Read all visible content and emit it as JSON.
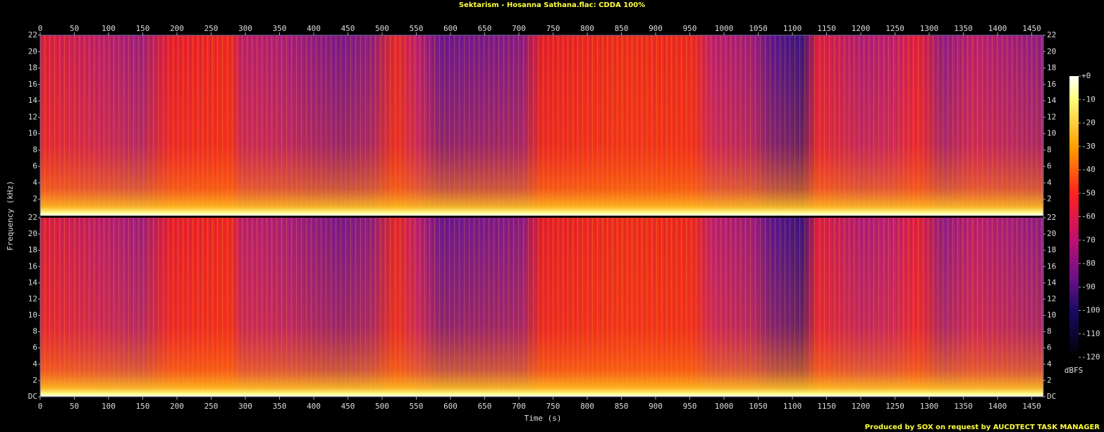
{
  "chart_data": {
    "type": "spectrogram",
    "title": "Sektarism - Hosanna Sathana.flac: CDDA 100%",
    "footer": "Produced by SOX on request by AUCDTECT TASK MANAGER",
    "x_label": "Time (s)",
    "y_label": "Frequency (kHz)",
    "xlim": [
      0,
      1467
    ],
    "xticks": [
      0,
      50,
      100,
      150,
      200,
      250,
      300,
      350,
      400,
      450,
      500,
      550,
      600,
      650,
      700,
      750,
      800,
      850,
      900,
      950,
      1000,
      1050,
      1100,
      1150,
      1200,
      1250,
      1300,
      1350,
      1400,
      1450
    ],
    "channels": [
      {
        "ylim": [
          0,
          22
        ],
        "yticks": [
          2,
          4,
          6,
          8,
          10,
          12,
          14,
          16,
          18,
          20,
          22
        ]
      },
      {
        "ylim": [
          0,
          22
        ],
        "yticks": [
          {
            "value": 0,
            "label": "DC"
          },
          2,
          4,
          6,
          8,
          10,
          12,
          14,
          16,
          18,
          20,
          22
        ]
      }
    ],
    "colorbar": {
      "label": "dBFS",
      "lim": [
        -120,
        0
      ],
      "ticks": [
        {
          "value": 0,
          "label": "+0"
        },
        -10,
        -20,
        -30,
        -40,
        -50,
        -60,
        -70,
        -80,
        -90,
        -100,
        -110,
        -120
      ]
    }
  }
}
